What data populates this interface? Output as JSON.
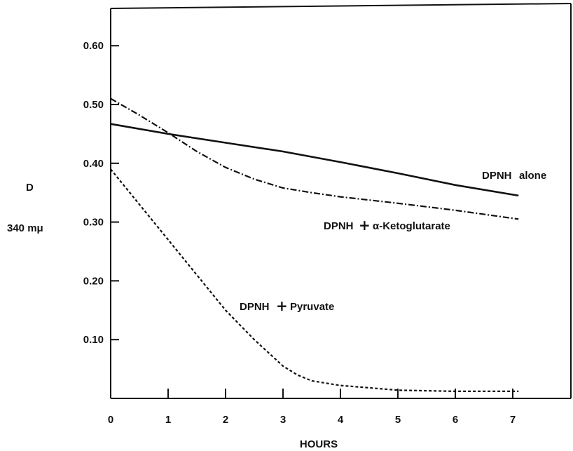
{
  "chart_data": {
    "type": "line",
    "xlabel": "HOURS",
    "ylabel": [
      "D",
      "340 mμ"
    ],
    "xlim": [
      0,
      7.9
    ],
    "ylim": [
      0,
      0.66
    ],
    "x_ticks": [
      0,
      1,
      2,
      3,
      4,
      5,
      6,
      7
    ],
    "x_tick_labels": [
      "0",
      "1",
      "2",
      "3",
      "4",
      "5",
      "6",
      "7"
    ],
    "y_ticks": [
      0.1,
      0.2,
      0.3,
      0.4,
      0.5,
      0.6
    ],
    "y_tick_labels": [
      "0.10",
      "0.20",
      "0.30",
      "0.40",
      "0.50",
      "0.60"
    ],
    "grid": false,
    "legend": "none",
    "series": [
      {
        "name": "DPNH alone",
        "label_parts": [
          "DPNH",
          "alone"
        ],
        "style": "solid",
        "x": [
          0,
          1,
          2,
          3,
          4,
          5,
          6,
          7.1
        ],
        "y": [
          0.467,
          0.45,
          0.435,
          0.42,
          0.402,
          0.383,
          0.363,
          0.345
        ]
      },
      {
        "name": "DPNH + α-Ketoglutarate",
        "label_parts": [
          "DPNH",
          "+",
          "α-Ketoglutarate"
        ],
        "style": "dashdot",
        "x": [
          0,
          0.5,
          1,
          1.5,
          2,
          2.5,
          3,
          3.5,
          4,
          5,
          6,
          7.1
        ],
        "y": [
          0.51,
          0.482,
          0.452,
          0.42,
          0.393,
          0.373,
          0.358,
          0.35,
          0.343,
          0.332,
          0.32,
          0.305
        ]
      },
      {
        "name": "DPNH + Pyruvate",
        "label_parts": [
          "DPNH",
          "+",
          "Pyruvate"
        ],
        "style": "dashed",
        "x": [
          0,
          0.5,
          1,
          1.5,
          2,
          2.5,
          3,
          3.25,
          3.5,
          4,
          4.5,
          5,
          6,
          7.1
        ],
        "y": [
          0.39,
          0.33,
          0.27,
          0.21,
          0.15,
          0.1,
          0.055,
          0.04,
          0.03,
          0.022,
          0.018,
          0.014,
          0.012,
          0.012
        ]
      }
    ]
  }
}
